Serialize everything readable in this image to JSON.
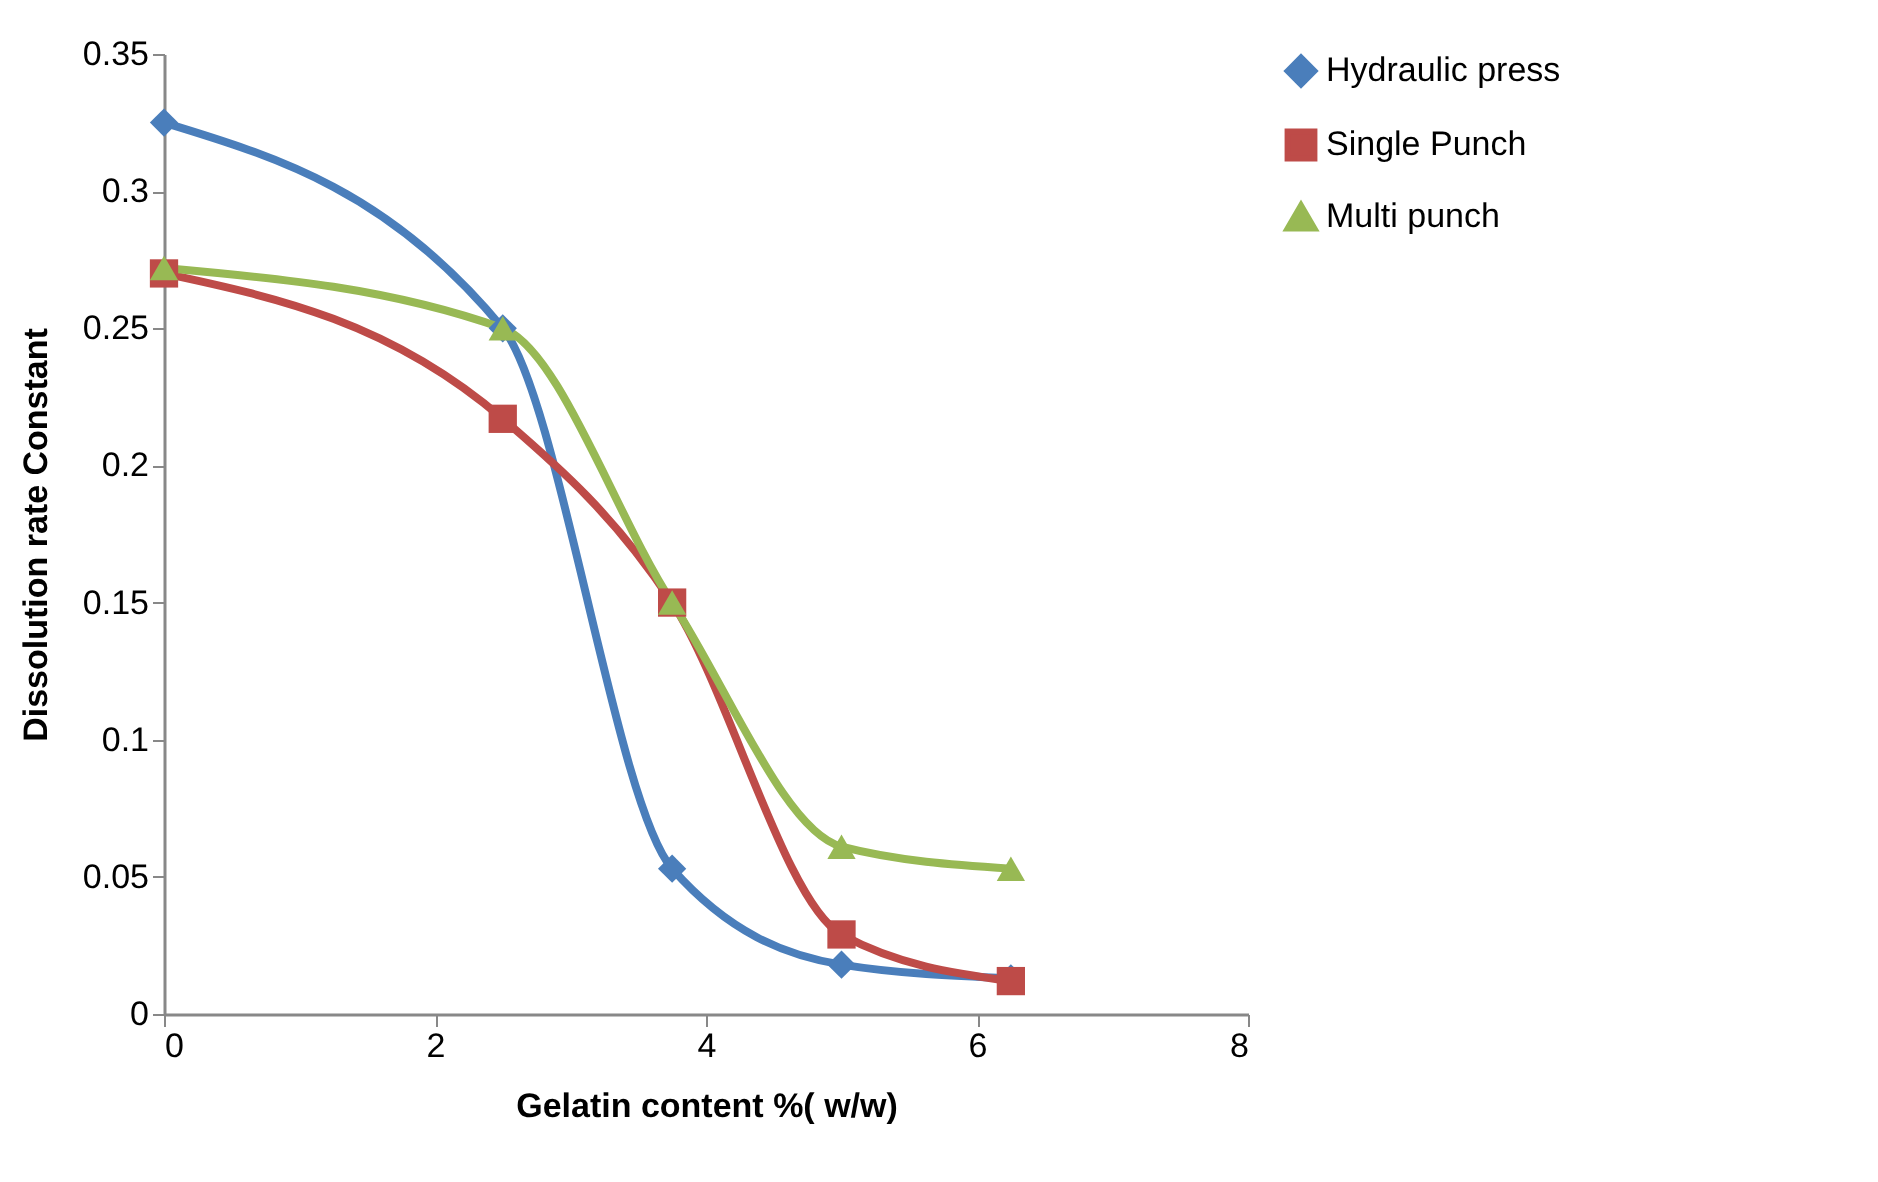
{
  "chart_data": {
    "type": "line",
    "xlabel": "Gelatin   content %( w/w)",
    "ylabel": "Dissolution rate Constant",
    "x": [
      0,
      2.5,
      3.75,
      5,
      6.25
    ],
    "series": [
      {
        "name": "Hydraulic press",
        "color": "#4a7ebb",
        "marker": "diamond",
        "values": [
          0.325,
          0.25,
          0.053,
          0.018,
          0.013
        ]
      },
      {
        "name": "Single Punch",
        "color": "#be4b48",
        "marker": "square",
        "values": [
          0.27,
          0.217,
          0.15,
          0.029,
          0.012
        ]
      },
      {
        "name": "Multi punch",
        "color": "#98b954",
        "marker": "triangle",
        "values": [
          0.272,
          0.25,
          0.15,
          0.061,
          0.053
        ]
      }
    ],
    "xlim": [
      0,
      8
    ],
    "xticks": [
      0,
      2,
      4,
      6,
      8
    ],
    "ylim": [
      0,
      0.35
    ],
    "yticks": [
      0,
      0.05,
      0.1,
      0.15,
      0.2,
      0.25,
      0.3,
      0.35
    ],
    "grid": false,
    "legend": "right",
    "line_style": "solid"
  }
}
